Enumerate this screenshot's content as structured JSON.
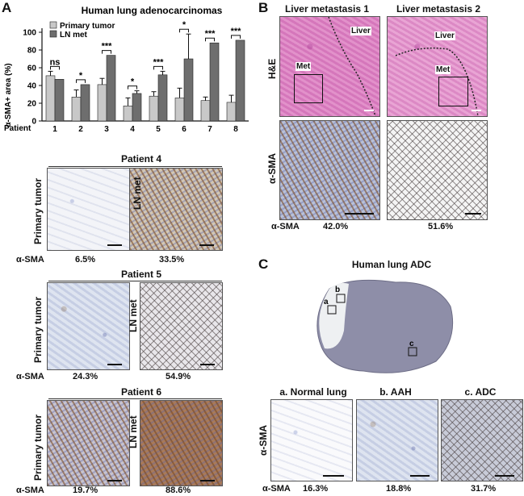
{
  "panels": {
    "a": "A",
    "b": "B",
    "c": "C"
  },
  "chart_data": {
    "type": "bar",
    "title": "Human lung adenocarcinomas",
    "ylabel": "α-SMA+ area (%)",
    "xlabel": "Patient",
    "ylim": [
      0,
      100
    ],
    "yticks": [
      0,
      20,
      40,
      60,
      80,
      100
    ],
    "categories": [
      "1",
      "2",
      "3",
      "4",
      "5",
      "6",
      "7",
      "8"
    ],
    "series": [
      {
        "name": "Primary tumor",
        "color": "#c8c8c8",
        "values": [
          51,
          27,
          41,
          17,
          28,
          26,
          23,
          21
        ],
        "errors": [
          5,
          8,
          7,
          9,
          5,
          11,
          4,
          8
        ]
      },
      {
        "name": "LN met",
        "color": "#6e6e6e",
        "values": [
          47,
          41,
          74,
          31,
          52,
          70,
          88,
          91
        ],
        "errors": [
          0,
          0,
          0,
          3,
          4,
          28,
          0,
          0
        ]
      }
    ],
    "significance": [
      "ns",
      "*",
      "***",
      "*",
      "***",
      "*",
      "***",
      "***"
    ],
    "legend_position": "top-left"
  },
  "panel_a": {
    "patients": [
      {
        "title": "Patient 4",
        "left_label": "Primary tumor",
        "right_label": "LN met",
        "marker": "α-SMA",
        "left_value": "6.5%",
        "right_value": "33.5%"
      },
      {
        "title": "Patient 5",
        "left_label": "Primary tumor",
        "right_label": "LN met",
        "marker": "α-SMA",
        "left_value": "24.3%",
        "right_value": "54.9%"
      },
      {
        "title": "Patient 6",
        "left_label": "Primary tumor",
        "right_label": "LN met",
        "marker": "α-SMA",
        "left_value": "19.7%",
        "right_value": "88.6%"
      }
    ]
  },
  "panel_b": {
    "col1": "Liver metastasis 1",
    "col2": "Liver metastasis 2",
    "row1": "H&E",
    "row2": "α-SMA",
    "liver": "Liver",
    "met": "Met",
    "marker": "α-SMA",
    "value1": "42.0%",
    "value2": "51.6%"
  },
  "panel_c": {
    "title": "Human lung ADC",
    "box_a": "a",
    "box_b": "b",
    "box_c": "c",
    "sub_a": "a. Normal lung",
    "sub_b": "b. AAH",
    "sub_c": "c. ADC",
    "row_label": "α-SMA",
    "marker": "α-SMA",
    "value_a": "16.3%",
    "value_b": "18.8%",
    "value_c": "31.7%"
  }
}
